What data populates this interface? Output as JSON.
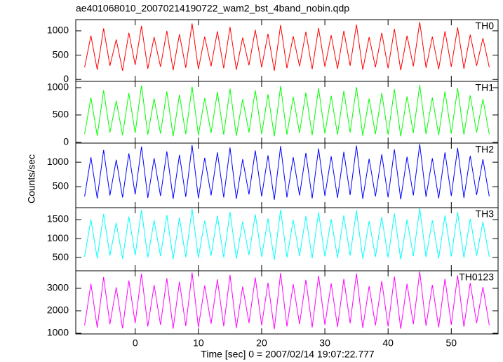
{
  "title": "ae401068010_20070214190722_wam2_bst_4band_nobin.qdp",
  "ylabel": "Counts/sec",
  "xlabel": "Time [sec] 0 = 2007/02/14 19:07:22.777",
  "chart_data": [
    {
      "type": "line",
      "x": [
        -8,
        -7,
        -6,
        -5,
        -4,
        -3,
        -2,
        -1,
        0,
        1,
        2,
        3,
        4,
        5,
        6,
        7,
        8,
        9,
        10,
        11,
        12,
        13,
        14,
        15,
        16,
        17,
        18,
        19,
        20,
        21,
        22,
        23,
        24,
        25,
        26,
        27,
        28,
        29,
        30,
        31,
        32,
        33,
        34,
        35,
        36,
        37,
        38,
        39,
        40,
        41,
        42,
        43,
        44,
        45,
        46,
        47,
        48,
        49,
        50,
        51,
        52,
        53,
        54,
        55,
        56
      ],
      "series": [
        {
          "name": "TH0",
          "color": "#ff0000",
          "values": [
            250,
            900,
            200,
            1050,
            280,
            820,
            180,
            960,
            300,
            1100,
            220,
            870,
            260,
            1000,
            190,
            930,
            240,
            1150,
            210,
            880,
            270,
            990,
            230,
            1080,
            200,
            860,
            290,
            1020,
            250,
            940,
            180,
            1120,
            230,
            890,
            270,
            980,
            210,
            1060,
            260,
            910,
            220,
            1000,
            280,
            1130,
            200,
            870,
            250,
            960,
            230,
            1040,
            190,
            900,
            270,
            1180,
            240,
            880,
            210,
            990,
            260,
            1070,
            220,
            920,
            280,
            850,
            250
          ]
        }
      ],
      "xlim": [
        -9.4,
        57.4
      ],
      "ylim": [
        -40,
        1230
      ],
      "yticks": [
        0,
        500,
        1000
      ]
    },
    {
      "type": "line",
      "x": [
        -8,
        -7,
        -6,
        -5,
        -4,
        -3,
        -2,
        -1,
        0,
        1,
        2,
        3,
        4,
        5,
        6,
        7,
        8,
        9,
        10,
        11,
        12,
        13,
        14,
        15,
        16,
        17,
        18,
        19,
        20,
        21,
        22,
        23,
        24,
        25,
        26,
        27,
        28,
        29,
        30,
        31,
        32,
        33,
        34,
        35,
        36,
        37,
        38,
        39,
        40,
        41,
        42,
        43,
        44,
        45,
        46,
        47,
        48,
        49,
        50,
        51,
        52,
        53,
        54,
        55,
        56
      ],
      "series": [
        {
          "name": "TH1",
          "color": "#00ff00",
          "values": [
            150,
            820,
            120,
            950,
            180,
            760,
            130,
            900,
            170,
            1040,
            140,
            800,
            160,
            930,
            110,
            870,
            150,
            1020,
            130,
            810,
            170,
            920,
            140,
            980,
            120,
            790,
            180,
            950,
            150,
            880,
            110,
            1030,
            140,
            830,
            170,
            910,
            130,
            990,
            160,
            850,
            140,
            940,
            180,
            1010,
            120,
            800,
            150,
            900,
            140,
            970,
            110,
            840,
            170,
            1050,
            150,
            820,
            130,
            930,
            160,
            990,
            140,
            860,
            180,
            790,
            150
          ]
        }
      ],
      "xlim": [
        -9.4,
        57.4
      ],
      "ylim": [
        -15,
        1115
      ],
      "yticks": [
        0,
        500,
        1000
      ]
    },
    {
      "type": "line",
      "x": [
        -8,
        -7,
        -6,
        -5,
        -4,
        -3,
        -2,
        -1,
        0,
        1,
        2,
        3,
        4,
        5,
        6,
        7,
        8,
        9,
        10,
        11,
        12,
        13,
        14,
        15,
        16,
        17,
        18,
        19,
        20,
        21,
        22,
        23,
        24,
        25,
        26,
        27,
        28,
        29,
        30,
        31,
        32,
        33,
        34,
        35,
        36,
        37,
        38,
        39,
        40,
        41,
        42,
        43,
        44,
        45,
        46,
        47,
        48,
        49,
        50,
        51,
        52,
        53,
        54,
        55,
        56
      ],
      "series": [
        {
          "name": "TH2",
          "color": "#0000ff",
          "values": [
            300,
            1100,
            260,
            1250,
            320,
            1050,
            280,
            1180,
            340,
            1320,
            270,
            1080,
            310,
            1220,
            250,
            1150,
            290,
            1350,
            260,
            1090,
            320,
            1200,
            280,
            1300,
            250,
            1060,
            340,
            1240,
            300,
            1140,
            230,
            1330,
            280,
            1100,
            320,
            1190,
            260,
            1280,
            310,
            1120,
            270,
            1210,
            330,
            1340,
            250,
            1070,
            300,
            1160,
            280,
            1260,
            240,
            1110,
            320,
            1370,
            290,
            1080,
            260,
            1200,
            310,
            1290,
            270,
            1130,
            330,
            1060,
            300
          ]
        }
      ],
      "xlim": [
        -9.4,
        57.4
      ],
      "ylim": [
        70,
        1390
      ],
      "yticks": [
        500,
        1000
      ]
    },
    {
      "type": "line",
      "x": [
        -8,
        -7,
        -6,
        -5,
        -4,
        -3,
        -2,
        -1,
        0,
        1,
        2,
        3,
        4,
        5,
        6,
        7,
        8,
        9,
        10,
        11,
        12,
        13,
        14,
        15,
        16,
        17,
        18,
        19,
        20,
        21,
        22,
        23,
        24,
        25,
        26,
        27,
        28,
        29,
        30,
        31,
        32,
        33,
        34,
        35,
        36,
        37,
        38,
        39,
        40,
        41,
        42,
        43,
        44,
        45,
        46,
        47,
        48,
        49,
        50,
        51,
        52,
        53,
        54,
        55,
        56
      ],
      "series": [
        {
          "name": "TH3",
          "color": "#00ffff",
          "values": [
            520,
            1500,
            480,
            1650,
            550,
            1420,
            470,
            1580,
            560,
            1750,
            500,
            1480,
            540,
            1620,
            460,
            1550,
            510,
            1780,
            490,
            1470,
            550,
            1600,
            500,
            1700,
            470,
            1450,
            560,
            1640,
            520,
            1530,
            440,
            1760,
            500,
            1490,
            540,
            1590,
            480,
            1690,
            530,
            1510,
            490,
            1610,
            550,
            1740,
            470,
            1460,
            520,
            1570,
            500,
            1660,
            450,
            1500,
            540,
            1800,
            510,
            1480,
            480,
            1610,
            530,
            1700,
            490,
            1520,
            550,
            1440,
            520
          ]
        }
      ],
      "xlim": [
        -9.4,
        57.4
      ],
      "ylim": [
        150,
        1815
      ],
      "yticks": [
        500,
        1000,
        1500
      ]
    },
    {
      "type": "line",
      "x": [
        -8,
        -7,
        -6,
        -5,
        -4,
        -3,
        -2,
        -1,
        0,
        1,
        2,
        3,
        4,
        5,
        6,
        7,
        8,
        9,
        10,
        11,
        12,
        13,
        14,
        15,
        16,
        17,
        18,
        19,
        20,
        21,
        22,
        23,
        24,
        25,
        26,
        27,
        28,
        29,
        30,
        31,
        32,
        33,
        34,
        35,
        36,
        37,
        38,
        39,
        40,
        41,
        42,
        43,
        44,
        45,
        46,
        47,
        48,
        49,
        50,
        51,
        52,
        53,
        54,
        55,
        56
      ],
      "series": [
        {
          "name": "TH0123",
          "color": "#ff00ff",
          "values": [
            1350,
            3200,
            1250,
            3500,
            1400,
            3050,
            1220,
            3350,
            1450,
            3650,
            1300,
            3150,
            1380,
            3450,
            1200,
            3300,
            1320,
            3700,
            1260,
            3120,
            1420,
            3400,
            1310,
            3600,
            1230,
            3080,
            1460,
            3480,
            1350,
            3250,
            1180,
            3680,
            1300,
            3180,
            1400,
            3380,
            1260,
            3560,
            1380,
            3220,
            1280,
            3420,
            1440,
            3660,
            1240,
            3100,
            1350,
            3320,
            1300,
            3520,
            1200,
            3200,
            1400,
            3750,
            1330,
            3150,
            1260,
            3420,
            1380,
            3580,
            1290,
            3240,
            1450,
            3060,
            1360
          ]
        }
      ],
      "xlim": [
        -9.4,
        57.4
      ],
      "ylim": [
        970,
        3780
      ],
      "yticks": [
        1000,
        2000,
        3000
      ],
      "xticks": [
        0,
        10,
        20,
        30,
        40,
        50
      ]
    }
  ]
}
